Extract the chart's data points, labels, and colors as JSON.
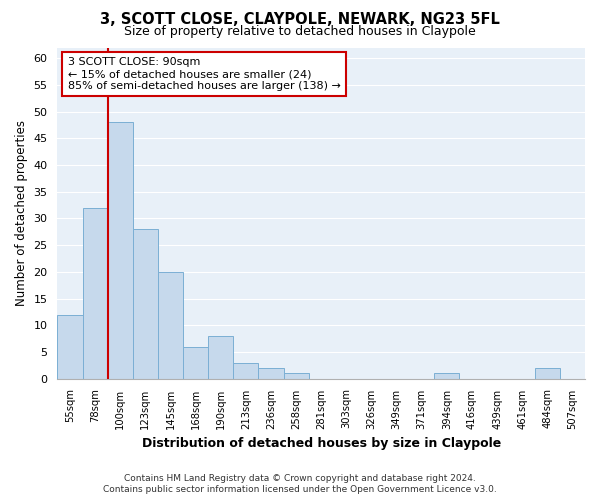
{
  "title": "3, SCOTT CLOSE, CLAYPOLE, NEWARK, NG23 5FL",
  "subtitle": "Size of property relative to detached houses in Claypole",
  "xlabel": "Distribution of detached houses by size in Claypole",
  "ylabel": "Number of detached properties",
  "bar_color": "#c6d9ec",
  "bar_edge_color": "#7bafd4",
  "bin_labels": [
    "55sqm",
    "78sqm",
    "100sqm",
    "123sqm",
    "145sqm",
    "168sqm",
    "190sqm",
    "213sqm",
    "236sqm",
    "258sqm",
    "281sqm",
    "303sqm",
    "326sqm",
    "349sqm",
    "371sqm",
    "394sqm",
    "416sqm",
    "439sqm",
    "461sqm",
    "484sqm",
    "507sqm"
  ],
  "bar_heights": [
    12,
    32,
    48,
    28,
    20,
    6,
    8,
    3,
    2,
    1,
    0,
    0,
    0,
    0,
    0,
    1,
    0,
    0,
    0,
    2,
    0
  ],
  "ylim": [
    0,
    62
  ],
  "yticks": [
    0,
    5,
    10,
    15,
    20,
    25,
    30,
    35,
    40,
    45,
    50,
    55,
    60
  ],
  "property_line_color": "#cc0000",
  "annotation_title": "3 SCOTT CLOSE: 90sqm",
  "annotation_line1": "← 15% of detached houses are smaller (24)",
  "annotation_line2": "85% of semi-detached houses are larger (138) →",
  "annotation_box_facecolor": "#ffffff",
  "annotation_box_edgecolor": "#cc0000",
  "footer_line1": "Contains HM Land Registry data © Crown copyright and database right 2024.",
  "footer_line2": "Contains public sector information licensed under the Open Government Licence v3.0.",
  "bg_color": "#ffffff",
  "plot_bg_color": "#e8f0f8",
  "grid_color": "#ffffff",
  "spine_color": "#b0b0b0"
}
